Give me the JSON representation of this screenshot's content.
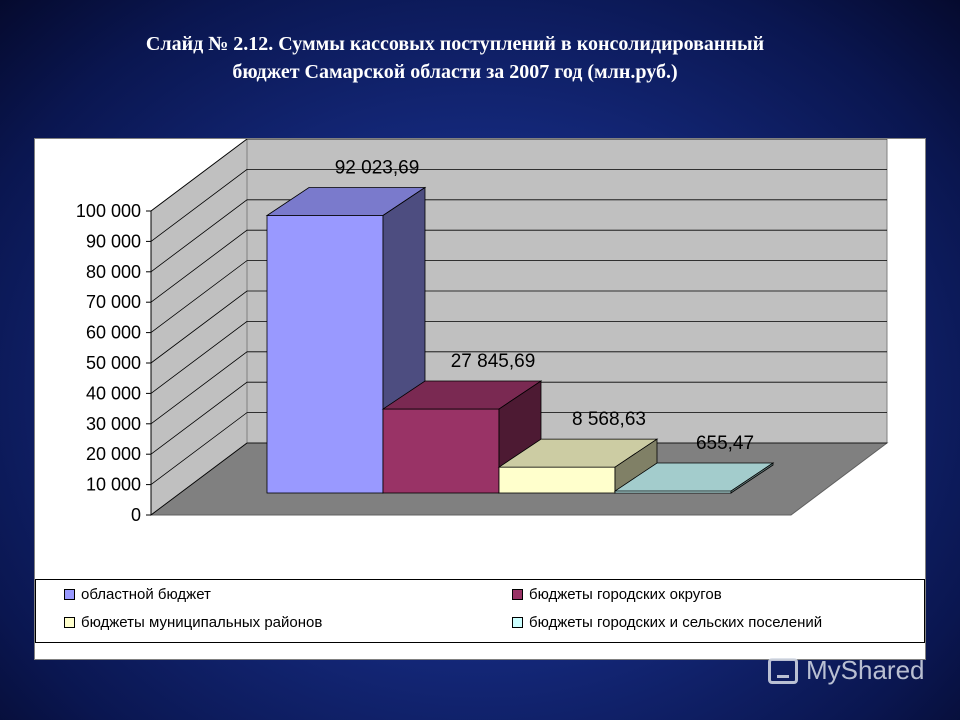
{
  "slide": {
    "title_line1": "Слайд № 2.12. Суммы кассовых поступлений в консолидированный",
    "title_line2": "бюджет Самарской области за 2007 год (млн.руб.)"
  },
  "chart_data": {
    "type": "bar",
    "categories": [
      "областной бюджет",
      "бюджеты городских округов",
      "бюджеты муниципальных районов",
      "бюджеты городских и сельских поселений"
    ],
    "values": [
      92023.69,
      27845.69,
      8568.63,
      655.47
    ],
    "data_labels": [
      "92 023,69",
      "27 845,69",
      "8 568,63",
      "655,47"
    ],
    "ylim": [
      0,
      100000
    ],
    "yticks": [
      0,
      10000,
      20000,
      30000,
      40000,
      50000,
      60000,
      70000,
      80000,
      90000,
      100000
    ],
    "ytick_labels": [
      "0",
      "10 000",
      "20 000",
      "30 000",
      "40 000",
      "50 000",
      "60 000",
      "70 000",
      "80 000",
      "90 000",
      "100 000"
    ],
    "colors": [
      "#9999ff",
      "#993366",
      "#ffffcc",
      "#ccffff"
    ],
    "grid": true,
    "legend_position": "bottom",
    "style": "3d"
  },
  "watermark": {
    "text": "MyShared"
  }
}
